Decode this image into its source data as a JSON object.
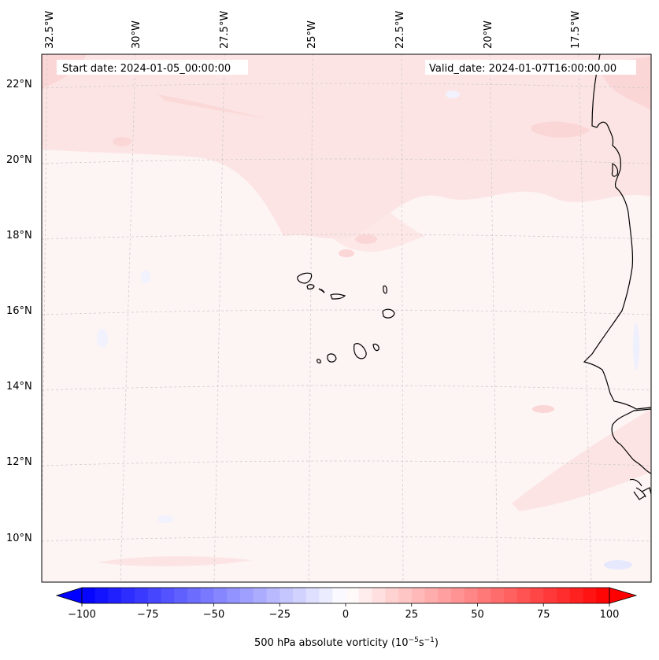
{
  "header": {
    "start_date": "Start date: 2024-01-05_00:00:00",
    "valid_date": "Valid_date: 2024-01-07T16:00:00.00"
  },
  "map": {
    "variable": "500 hPa absolute vorticity",
    "lon_labels": [
      "32.5°W",
      "30°W",
      "27.5°W",
      "25°W",
      "22.5°W",
      "20°W",
      "17.5°W"
    ],
    "lat_labels": [
      "22°N",
      "20°N",
      "18°N",
      "16°N",
      "14°N",
      "12°N",
      "10°N"
    ],
    "gridlines": true
  },
  "colorbar": {
    "label_main": "500 hPa absolute vorticity (10",
    "label_sup1": "−5",
    "label_mid": "s",
    "label_sup2": "−1",
    "label_end": ")",
    "ticks": [
      "−100",
      "−75",
      "−50",
      "−25",
      "0",
      "25",
      "50",
      "75",
      "100"
    ],
    "tick_values": [
      -100,
      -75,
      -50,
      -25,
      0,
      25,
      50,
      75,
      100
    ],
    "min": -100,
    "max": 100,
    "levels": 40,
    "extend": "both",
    "cmap": "bwr",
    "color_min": "#0000ff",
    "color_mid": "#ffffff",
    "color_max": "#ff0000"
  },
  "colors": {
    "background": "#fdf4f4",
    "positive_band": "#fde4e4",
    "positive_strong": "#fbd6d6",
    "negative_patch": "#eef0fd",
    "coastline": "#000000",
    "grid": "#c8c8c8"
  }
}
